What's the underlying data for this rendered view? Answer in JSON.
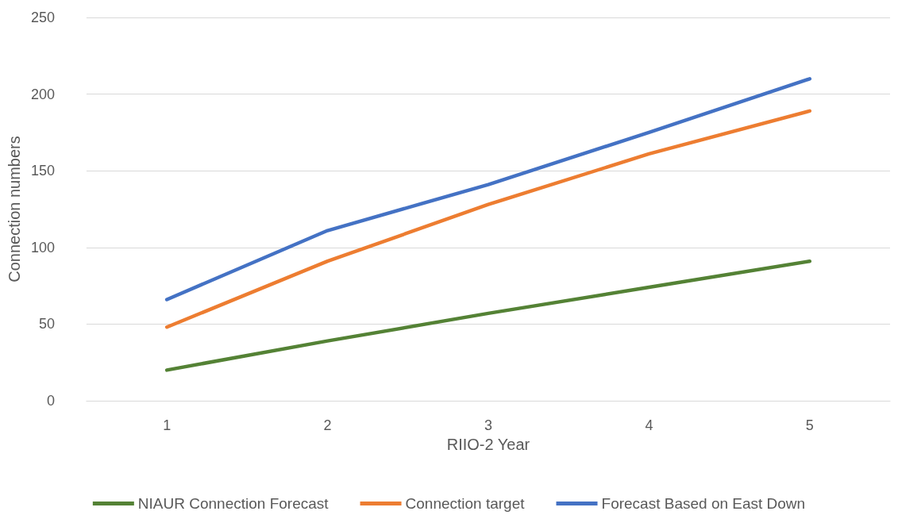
{
  "chart_data": {
    "type": "line",
    "xlabel": "RIIO-2 Year",
    "ylabel": "Connection numbers",
    "categories": [
      "1",
      "2",
      "3",
      "4",
      "5"
    ],
    "series": [
      {
        "name": "NIAUR Connection Forecast",
        "color": "#548235",
        "values": [
          20,
          39,
          57,
          74,
          91
        ]
      },
      {
        "name": "Connection target",
        "color": "#ed7d31",
        "values": [
          48,
          91,
          128,
          161,
          189
        ]
      },
      {
        "name": "Forecast Based on East Down",
        "color": "#4472c4",
        "values": [
          66,
          111,
          141,
          175,
          210
        ]
      }
    ],
    "ylim": [
      0,
      250
    ],
    "yticks": [
      0,
      50,
      100,
      150,
      200,
      250
    ],
    "grid": "y",
    "legend": "bottom",
    "marker": "none",
    "line_style": "solid"
  }
}
